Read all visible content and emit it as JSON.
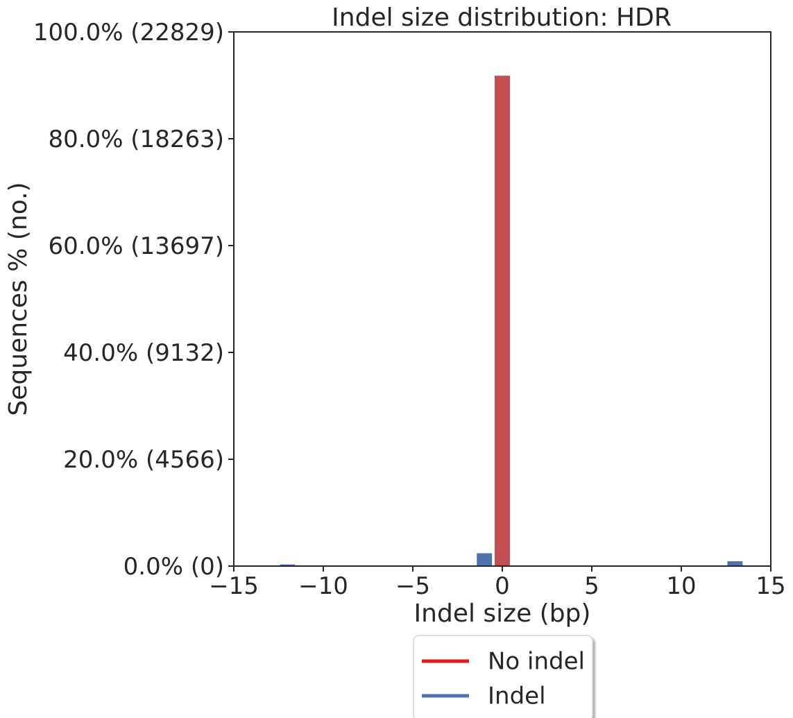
{
  "chart_data": {
    "type": "bar",
    "title": "Indel size distribution: HDR",
    "xlabel": "Indel size (bp)",
    "ylabel": "Sequences % (no.)",
    "xlim": [
      -15,
      15
    ],
    "ylim": [
      0,
      100
    ],
    "xticks": [
      {
        "value": -15,
        "label": "−15"
      },
      {
        "value": -10,
        "label": "−10"
      },
      {
        "value": -5,
        "label": "−5"
      },
      {
        "value": 0,
        "label": "0"
      },
      {
        "value": 5,
        "label": "5"
      },
      {
        "value": 10,
        "label": "10"
      },
      {
        "value": 15,
        "label": "15"
      }
    ],
    "yticks": [
      {
        "value": 0,
        "label": "0.0% (0)"
      },
      {
        "value": 20,
        "label": "20.0% (4566)"
      },
      {
        "value": 40,
        "label": "40.0% (9132)"
      },
      {
        "value": 60,
        "label": "60.0% (13697)"
      },
      {
        "value": 80,
        "label": "80.0% (18263)"
      },
      {
        "value": 100,
        "label": "100.0% (22829)"
      }
    ],
    "series": [
      {
        "name": "No indel",
        "color": "#c44e52",
        "points": [
          {
            "x": 0,
            "y": 91.8
          }
        ]
      },
      {
        "name": "Indel",
        "color": "#4c72b0",
        "points": [
          {
            "x": -12,
            "y": 0.3
          },
          {
            "x": -1,
            "y": 2.4
          },
          {
            "x": 13,
            "y": 0.9
          }
        ]
      }
    ],
    "legend": {
      "placement": "bottom-center, below x-axis",
      "entries": [
        {
          "label": "No indel",
          "color": "#e31a1c"
        },
        {
          "label": "Indel",
          "color": "#4c72b0"
        }
      ]
    },
    "grid": false
  }
}
